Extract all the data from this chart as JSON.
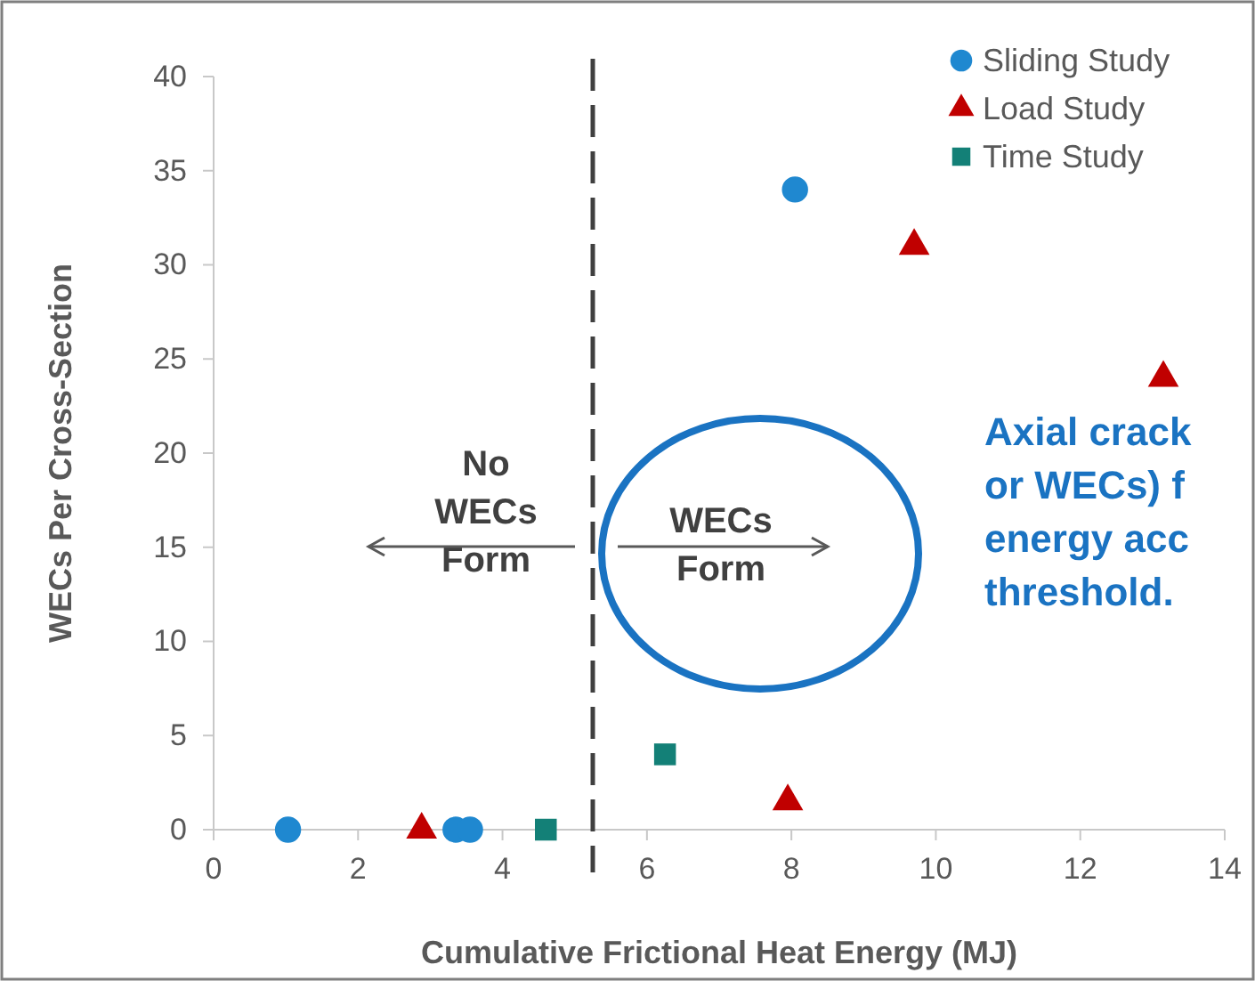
{
  "chart_data": {
    "type": "scatter",
    "xlabel": "Cumulative Frictional Heat Energy (MJ)",
    "ylabel": "WECs Per Cross-Section",
    "xlim": [
      0,
      14
    ],
    "xticks": [
      0,
      2,
      4,
      6,
      8,
      10,
      12,
      14
    ],
    "ylim": [
      0,
      40
    ],
    "yticks": [
      0,
      5,
      10,
      15,
      20,
      25,
      30,
      35,
      40
    ],
    "grid": false,
    "legend": "top right",
    "series": [
      {
        "name": "Sliding Study",
        "color": "#1f88d0",
        "marker": "circle",
        "x": [
          1.03,
          3.35,
          3.55,
          8.05
        ],
        "values": [
          0,
          0,
          0,
          34
        ]
      },
      {
        "name": "Load Study",
        "color": "#c00000",
        "marker": "triangle",
        "x": [
          2.88,
          7.95,
          9.7,
          13.15
        ],
        "values": [
          0,
          1.5,
          31,
          24
        ]
      },
      {
        "name": "Time Study",
        "color": "#138077",
        "marker": "square",
        "x": [
          4.6,
          6.25
        ],
        "values": [
          0,
          4
        ]
      }
    ],
    "ref_lines": [
      {
        "axis": "x",
        "value": 5.25,
        "color": "#404040",
        "line_style": "dashed"
      }
    ],
    "annotations": [
      "No\nWECs\nForm",
      "WECs\nForm",
      "Axial crack\nor WECs) f\nenergy acc\nthreshold."
    ]
  }
}
